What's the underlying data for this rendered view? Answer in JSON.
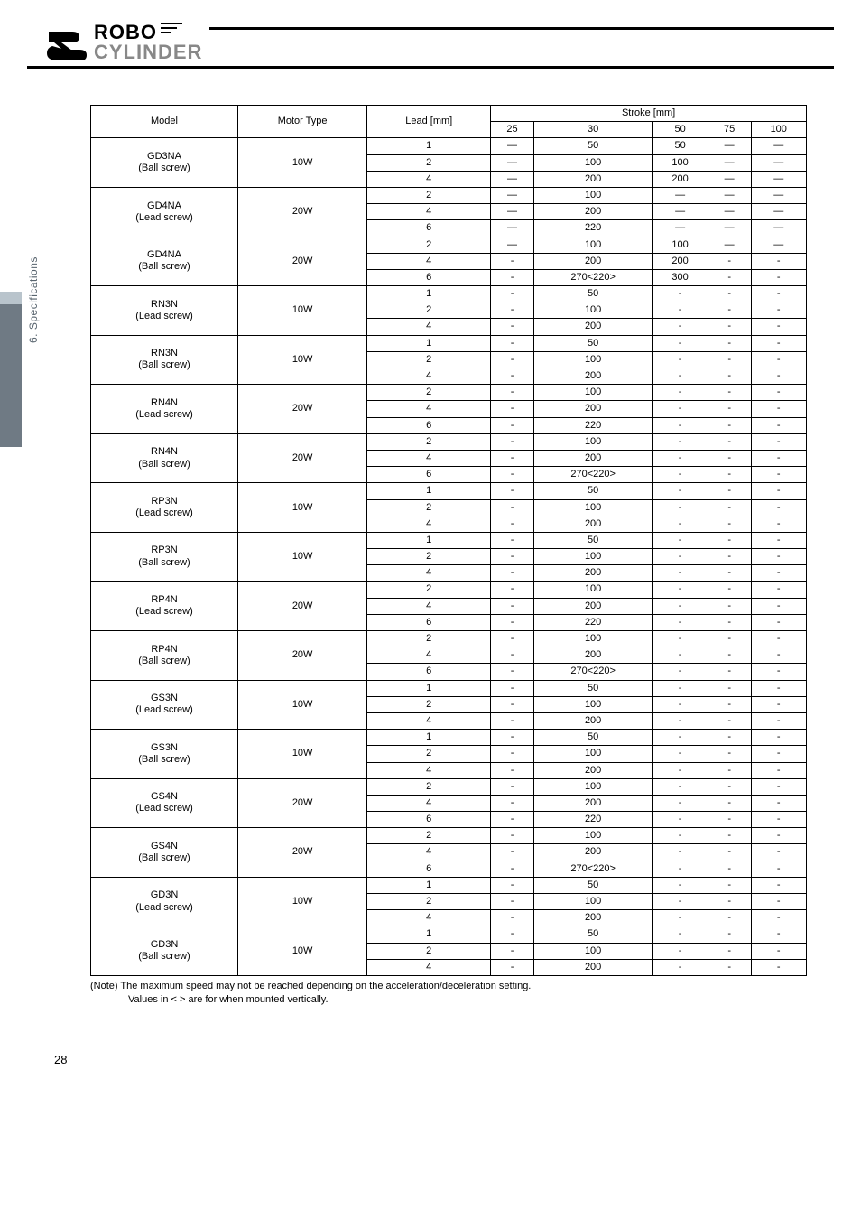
{
  "logo": {
    "line1": "ROBO",
    "line2": "CYLINDER"
  },
  "side_label": "6. Specifications",
  "page_number": "28",
  "table": {
    "header": {
      "model": "Model",
      "motor": "Motor Type",
      "lead": "Lead [mm]",
      "stroke": "Stroke [mm]",
      "cols": [
        "25",
        "30",
        "50",
        "75",
        "100"
      ]
    },
    "groups": [
      {
        "model": "GD3NA",
        "sub": "(Ball screw)",
        "motor": "10W",
        "rows": [
          {
            "lead": "1",
            "v": [
              "—",
              "50",
              "50",
              "—",
              "—"
            ]
          },
          {
            "lead": "2",
            "v": [
              "—",
              "100",
              "100",
              "—",
              "—"
            ]
          },
          {
            "lead": "4",
            "v": [
              "—",
              "200",
              "200",
              "—",
              "—"
            ]
          }
        ]
      },
      {
        "model": "GD4NA",
        "sub": "(Lead screw)",
        "motor": "20W",
        "rows": [
          {
            "lead": "2",
            "v": [
              "—",
              "100",
              "—",
              "—",
              "—"
            ]
          },
          {
            "lead": "4",
            "v": [
              "—",
              "200",
              "—",
              "—",
              "—"
            ]
          },
          {
            "lead": "6",
            "v": [
              "—",
              "220",
              "—",
              "—",
              "—"
            ]
          }
        ]
      },
      {
        "model": "GD4NA",
        "sub": "(Ball screw)",
        "motor": "20W",
        "rows": [
          {
            "lead": "2",
            "v": [
              "—",
              "100",
              "100",
              "—",
              "—"
            ]
          },
          {
            "lead": "4",
            "v": [
              "-",
              "200",
              "200",
              "-",
              "-"
            ]
          },
          {
            "lead": "6",
            "v": [
              "-",
              "270<220>",
              "300",
              "-",
              "-"
            ]
          }
        ]
      },
      {
        "model": "RN3N",
        "sub": "(Lead screw)",
        "motor": "10W",
        "rows": [
          {
            "lead": "1",
            "v": [
              "-",
              "50",
              "-",
              "-",
              "-"
            ]
          },
          {
            "lead": "2",
            "v": [
              "-",
              "100",
              "-",
              "-",
              "-"
            ]
          },
          {
            "lead": "4",
            "v": [
              "-",
              "200",
              "-",
              "-",
              "-"
            ]
          }
        ]
      },
      {
        "model": "RN3N",
        "sub": "(Ball screw)",
        "motor": "10W",
        "rows": [
          {
            "lead": "1",
            "v": [
              "-",
              "50",
              "-",
              "-",
              "-"
            ]
          },
          {
            "lead": "2",
            "v": [
              "-",
              "100",
              "-",
              "-",
              "-"
            ]
          },
          {
            "lead": "4",
            "v": [
              "-",
              "200",
              "-",
              "-",
              "-"
            ]
          }
        ]
      },
      {
        "model": "RN4N",
        "sub": "(Lead screw)",
        "motor": "20W",
        "rows": [
          {
            "lead": "2",
            "v": [
              "-",
              "100",
              "-",
              "-",
              "-"
            ]
          },
          {
            "lead": "4",
            "v": [
              "-",
              "200",
              "-",
              "-",
              "-"
            ]
          },
          {
            "lead": "6",
            "v": [
              "-",
              "220",
              "-",
              "-",
              "-"
            ]
          }
        ]
      },
      {
        "model": "RN4N",
        "sub": "(Ball screw)",
        "motor": "20W",
        "rows": [
          {
            "lead": "2",
            "v": [
              "-",
              "100",
              "-",
              "-",
              "-"
            ]
          },
          {
            "lead": "4",
            "v": [
              "-",
              "200",
              "-",
              "-",
              "-"
            ]
          },
          {
            "lead": "6",
            "v": [
              "-",
              "270<220>",
              "-",
              "-",
              "-"
            ]
          }
        ]
      },
      {
        "model": "RP3N",
        "sub": "(Lead screw)",
        "motor": "10W",
        "rows": [
          {
            "lead": "1",
            "v": [
              "-",
              "50",
              "-",
              "-",
              "-"
            ]
          },
          {
            "lead": "2",
            "v": [
              "-",
              "100",
              "-",
              "-",
              "-"
            ]
          },
          {
            "lead": "4",
            "v": [
              "-",
              "200",
              "-",
              "-",
              "-"
            ]
          }
        ]
      },
      {
        "model": "RP3N",
        "sub": "(Ball screw)",
        "motor": "10W",
        "rows": [
          {
            "lead": "1",
            "v": [
              "-",
              "50",
              "-",
              "-",
              "-"
            ]
          },
          {
            "lead": "2",
            "v": [
              "-",
              "100",
              "-",
              "-",
              "-"
            ]
          },
          {
            "lead": "4",
            "v": [
              "-",
              "200",
              "-",
              "-",
              "-"
            ]
          }
        ]
      },
      {
        "model": "RP4N",
        "sub": "(Lead screw)",
        "motor": "20W",
        "rows": [
          {
            "lead": "2",
            "v": [
              "-",
              "100",
              "-",
              "-",
              "-"
            ]
          },
          {
            "lead": "4",
            "v": [
              "-",
              "200",
              "-",
              "-",
              "-"
            ]
          },
          {
            "lead": "6",
            "v": [
              "-",
              "220",
              "-",
              "-",
              "-"
            ]
          }
        ]
      },
      {
        "model": "RP4N",
        "sub": "(Ball screw)",
        "motor": "20W",
        "rows": [
          {
            "lead": "2",
            "v": [
              "-",
              "100",
              "-",
              "-",
              "-"
            ]
          },
          {
            "lead": "4",
            "v": [
              "-",
              "200",
              "-",
              "-",
              "-"
            ]
          },
          {
            "lead": "6",
            "v": [
              "-",
              "270<220>",
              "-",
              "-",
              "-"
            ]
          }
        ]
      },
      {
        "model": "GS3N",
        "sub": "(Lead screw)",
        "motor": "10W",
        "rows": [
          {
            "lead": "1",
            "v": [
              "-",
              "50",
              "-",
              "-",
              "-"
            ]
          },
          {
            "lead": "2",
            "v": [
              "-",
              "100",
              "-",
              "-",
              "-"
            ]
          },
          {
            "lead": "4",
            "v": [
              "-",
              "200",
              "-",
              "-",
              "-"
            ]
          }
        ]
      },
      {
        "model": "GS3N",
        "sub": "(Ball screw)",
        "motor": "10W",
        "rows": [
          {
            "lead": "1",
            "v": [
              "-",
              "50",
              "-",
              "-",
              "-"
            ]
          },
          {
            "lead": "2",
            "v": [
              "-",
              "100",
              "-",
              "-",
              "-"
            ]
          },
          {
            "lead": "4",
            "v": [
              "-",
              "200",
              "-",
              "-",
              "-"
            ]
          }
        ]
      },
      {
        "model": "GS4N",
        "sub": "(Lead screw)",
        "motor": "20W",
        "rows": [
          {
            "lead": "2",
            "v": [
              "-",
              "100",
              "-",
              "-",
              "-"
            ]
          },
          {
            "lead": "4",
            "v": [
              "-",
              "200",
              "-",
              "-",
              "-"
            ]
          },
          {
            "lead": "6",
            "v": [
              "-",
              "220",
              "-",
              "-",
              "-"
            ]
          }
        ]
      },
      {
        "model": "GS4N",
        "sub": "(Ball screw)",
        "motor": "20W",
        "rows": [
          {
            "lead": "2",
            "v": [
              "-",
              "100",
              "-",
              "-",
              "-"
            ]
          },
          {
            "lead": "4",
            "v": [
              "-",
              "200",
              "-",
              "-",
              "-"
            ]
          },
          {
            "lead": "6",
            "v": [
              "-",
              "270<220>",
              "-",
              "-",
              "-"
            ]
          }
        ]
      },
      {
        "model": "GD3N",
        "sub": "(Lead screw)",
        "motor": "10W",
        "rows": [
          {
            "lead": "1",
            "v": [
              "-",
              "50",
              "-",
              "-",
              "-"
            ]
          },
          {
            "lead": "2",
            "v": [
              "-",
              "100",
              "-",
              "-",
              "-"
            ]
          },
          {
            "lead": "4",
            "v": [
              "-",
              "200",
              "-",
              "-",
              "-"
            ]
          }
        ]
      },
      {
        "model": "GD3N",
        "sub": "(Ball screw)",
        "motor": "10W",
        "rows": [
          {
            "lead": "1",
            "v": [
              "-",
              "50",
              "-",
              "-",
              "-"
            ]
          },
          {
            "lead": "2",
            "v": [
              "-",
              "100",
              "-",
              "-",
              "-"
            ]
          },
          {
            "lead": "4",
            "v": [
              "-",
              "200",
              "-",
              "-",
              "-"
            ]
          }
        ]
      }
    ]
  },
  "note": {
    "line1": "(Note)  The maximum speed may not be reached depending on the acceleration/deceleration setting.",
    "line2": "Values in < > are for when mounted vertically."
  }
}
